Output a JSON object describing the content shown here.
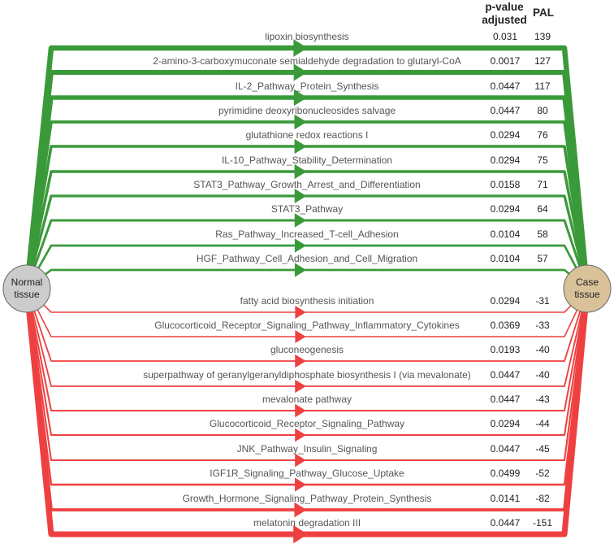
{
  "header": {
    "pvalue_line1": "p-value",
    "pvalue_line2": "adjusted",
    "pal": "PAL"
  },
  "nodes": {
    "source": {
      "line1": "Normal",
      "line2": "tissue",
      "fill": "#cccccc"
    },
    "target": {
      "line1": "Case",
      "line2": "tissue",
      "fill": "#d9c29a"
    }
  },
  "colors": {
    "up": "#3a9a3a",
    "down": "#ee4040"
  },
  "pathways": [
    {
      "name": "lipoxin biosynthesis",
      "p": "0.031",
      "pal": "139"
    },
    {
      "name": "2-amino-3-carboxymuconate semialdehyde degradation to glutaryl-CoA",
      "p": "0.0017",
      "pal": "127"
    },
    {
      "name": "IL-2_Pathway_Protein_Synthesis",
      "p": "0.0447",
      "pal": "117"
    },
    {
      "name": "pyrimidine deoxyribonucleosides salvage",
      "p": "0.0447",
      "pal": "80"
    },
    {
      "name": "glutathione redox reactions I",
      "p": "0.0294",
      "pal": "76"
    },
    {
      "name": "IL-10_Pathway_Stability_Determination",
      "p": "0.0294",
      "pal": "75"
    },
    {
      "name": "STAT3_Pathway_Growth_Arrest_and_Differentiation",
      "p": "0.0158",
      "pal": "71"
    },
    {
      "name": "STAT3_Pathway",
      "p": "0.0294",
      "pal": "64"
    },
    {
      "name": "Ras_Pathway_Increased_T-cell_Adhesion",
      "p": "0.0104",
      "pal": "58"
    },
    {
      "name": "HGF_Pathway_Cell_Adhesion_and_Cell_Migration",
      "p": "0.0104",
      "pal": "57"
    },
    {
      "name": "fatty acid biosynthesis initiation",
      "p": "0.0294",
      "pal": "-31"
    },
    {
      "name": "Glucocorticoid_Receptor_Signaling_Pathway_Inflammatory_Cytokines",
      "p": "0.0369",
      "pal": "-33"
    },
    {
      "name": "gluconeogenesis",
      "p": "0.0193",
      "pal": "-40"
    },
    {
      "name": "superpathway of geranylgeranyldiphosphate biosynthesis I (via mevalonate)",
      "p": "0.0447",
      "pal": "-40"
    },
    {
      "name": "mevalonate pathway",
      "p": "0.0447",
      "pal": "-43"
    },
    {
      "name": "Glucocorticoid_Receptor_Signaling_Pathway",
      "p": "0.0294",
      "pal": "-44"
    },
    {
      "name": "JNK_Pathway_Insulin_Signaling",
      "p": "0.0447",
      "pal": "-45"
    },
    {
      "name": "IGF1R_Signaling_Pathway_Glucose_Uptake",
      "p": "0.0499",
      "pal": "-52"
    },
    {
      "name": "Growth_Hormone_Signaling_Pathway_Protein_Synthesis",
      "p": "0.0141",
      "pal": "-82"
    },
    {
      "name": "melatonin degradation III",
      "p": "0.0447",
      "pal": "-151"
    }
  ]
}
